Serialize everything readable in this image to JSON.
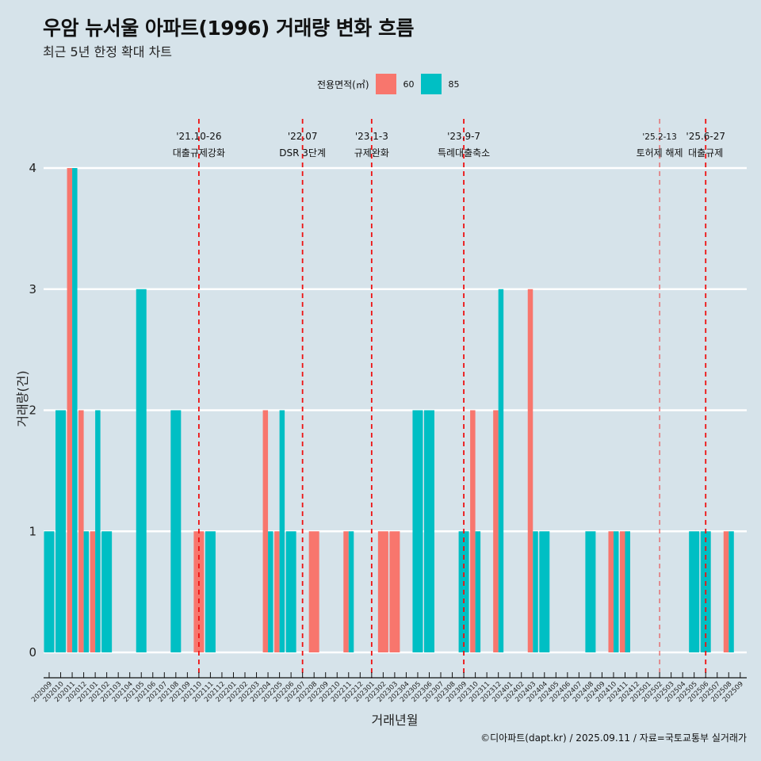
{
  "header": {
    "title": "우암 뉴서울 아파트(1996) 거래량 변화 흐름",
    "subtitle": "최근 5년 한정 확대 차트"
  },
  "legend": {
    "title": "전용면적(㎡)",
    "items": [
      {
        "label": "60",
        "color": "#f8766d"
      },
      {
        "label": "85",
        "color": "#00bfc4"
      }
    ]
  },
  "footer": "©디아파트(dapt.kr) / 2025.09.11 / 자료=국토교통부 실거래가",
  "chart_data": {
    "type": "bar",
    "title": "우암 뉴서울 아파트(1996) 거래량 변화 흐름",
    "subtitle": "최근 5년 한정 확대 차트",
    "xlabel": "거래년월",
    "ylabel": "거래량(건)",
    "ylim": [
      0,
      4
    ],
    "yticks": [
      "0",
      "1",
      "2",
      "3",
      "4"
    ],
    "grid": "horizontal",
    "legend_position": "top",
    "categories": [
      "202009",
      "202010",
      "202011",
      "202012",
      "202101",
      "202102",
      "202103",
      "202104",
      "202105",
      "202106",
      "202107",
      "202108",
      "202109",
      "202110",
      "202111",
      "202112",
      "202201",
      "202202",
      "202203",
      "202204",
      "202205",
      "202206",
      "202207",
      "202208",
      "202209",
      "202210",
      "202211",
      "202212",
      "202301",
      "202302",
      "202303",
      "202304",
      "202305",
      "202306",
      "202307",
      "202308",
      "202309",
      "202310",
      "202311",
      "202312",
      "202401",
      "202402",
      "202403",
      "202404",
      "202405",
      "202406",
      "202407",
      "202408",
      "202409",
      "202410",
      "202411",
      "202412",
      "202501",
      "202502",
      "202503",
      "202504",
      "202505",
      "202506",
      "202507",
      "202508",
      "202509"
    ],
    "series": [
      {
        "name": "60",
        "color": "#f8766d",
        "values": [
          0,
          0,
          4,
          2,
          1,
          0,
          0,
          0,
          0,
          0,
          0,
          0,
          0,
          1,
          0,
          0,
          0,
          0,
          0,
          2,
          1,
          0,
          0,
          1,
          0,
          0,
          1,
          0,
          0,
          1,
          1,
          0,
          0,
          0,
          0,
          0,
          0,
          2,
          0,
          2,
          0,
          0,
          3,
          0,
          0,
          0,
          0,
          0,
          0,
          1,
          1,
          0,
          0,
          0,
          0,
          0,
          0,
          0,
          0,
          1,
          0
        ]
      },
      {
        "name": "85",
        "color": "#00bfc4",
        "values": [
          1,
          2,
          4,
          1,
          2,
          1,
          0,
          0,
          3,
          0,
          0,
          2,
          0,
          0,
          1,
          0,
          0,
          0,
          0,
          1,
          2,
          1,
          0,
          0,
          0,
          0,
          1,
          0,
          0,
          0,
          0,
          0,
          2,
          2,
          0,
          0,
          1,
          1,
          0,
          3,
          0,
          0,
          1,
          1,
          0,
          0,
          0,
          1,
          0,
          1,
          1,
          0,
          0,
          0,
          0,
          0,
          1,
          1,
          0,
          1,
          0
        ]
      }
    ],
    "annotations": [
      {
        "month": "202110",
        "date": "'21.10-26",
        "label": "대출규제강화",
        "style": "bold"
      },
      {
        "month": "202207",
        "date": "'22.07",
        "label": "DSR 3단계",
        "style": "bold"
      },
      {
        "month": "202301",
        "date": "'23.1-3",
        "label": "규제완화",
        "style": "bold"
      },
      {
        "month": "202309",
        "date": "'23.9-7",
        "label": "특례대출축소",
        "style": "bold"
      },
      {
        "month": "202502",
        "date": "'25.2-13",
        "label": "토허제 해제",
        "style": "thin"
      },
      {
        "month": "202506",
        "date": "'25.6-27",
        "label": "대출규제",
        "style": "bold"
      }
    ]
  }
}
